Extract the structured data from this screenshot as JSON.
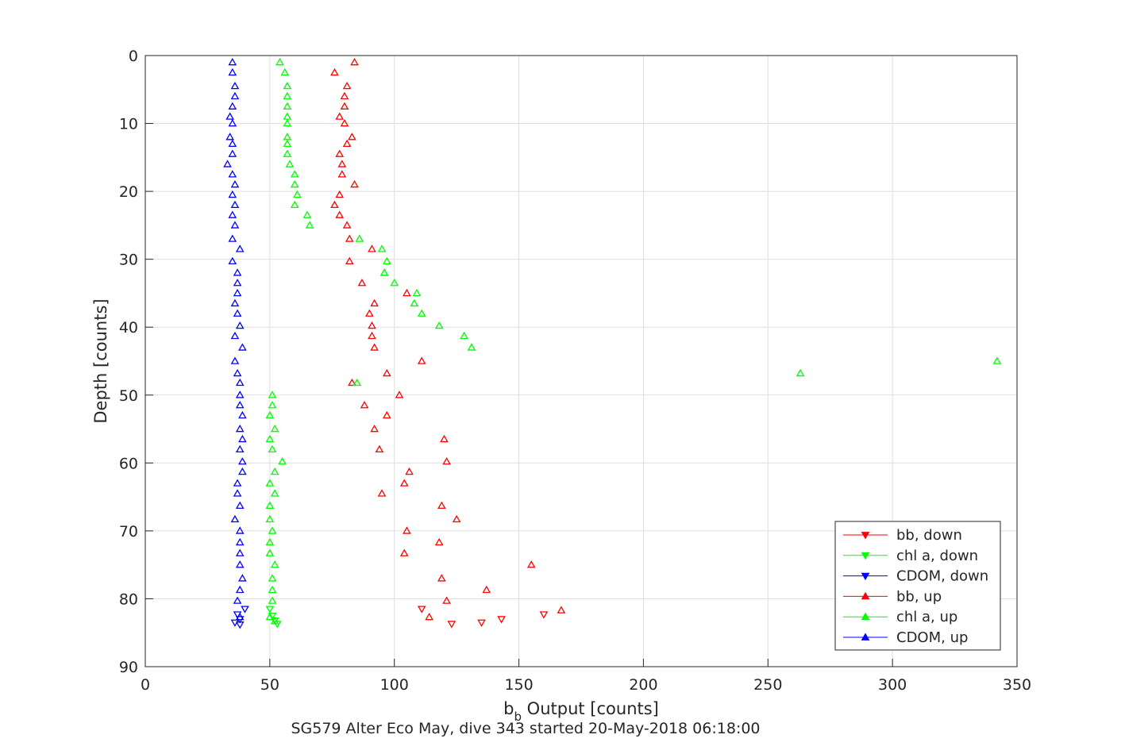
{
  "chart_data": {
    "type": "scatter",
    "xlabel_main": "b",
    "xlabel_sub": "b",
    "xlabel_rest": " Output [counts]",
    "ylabel": "Depth [counts]",
    "caption": "SG579 Alter Eco May, dive 343 started 20-May-2018 06:18:00",
    "xlim": [
      0,
      350
    ],
    "ylim": [
      0,
      90
    ],
    "y_reversed": true,
    "grid": true,
    "legend_position": "bottom-right",
    "x_ticks": [
      "0",
      "50",
      "100",
      "150",
      "200",
      "250",
      "300",
      "350"
    ],
    "y_ticks": [
      "0",
      "10",
      "20",
      "30",
      "40",
      "50",
      "60",
      "70",
      "80",
      "90"
    ],
    "series": [
      {
        "name": "bb, down",
        "color": "#ff0000",
        "marker": "triangle-down",
        "points": [
          [
            111,
            81.5
          ],
          [
            123,
            83.7
          ],
          [
            135,
            83.5
          ],
          [
            143,
            83
          ],
          [
            160,
            82.3
          ]
        ]
      },
      {
        "name": "chl a, down",
        "color": "#00ff00",
        "marker": "triangle-down",
        "points": [
          [
            50,
            81.5
          ],
          [
            51,
            82.5
          ],
          [
            52,
            83.2
          ],
          [
            53,
            83.7
          ]
        ]
      },
      {
        "name": "CDOM, down",
        "color": "#0000ff",
        "marker": "triangle-down",
        "points": [
          [
            40,
            81.5
          ],
          [
            37,
            82.3
          ],
          [
            38,
            83
          ],
          [
            36,
            83.5
          ],
          [
            38,
            83.8
          ]
        ]
      },
      {
        "name": "bb, up",
        "color": "#ff0000",
        "marker": "triangle-up",
        "points": [
          [
            84,
            1
          ],
          [
            76,
            2.5
          ],
          [
            81,
            4.5
          ],
          [
            80,
            6
          ],
          [
            80,
            7.5
          ],
          [
            78,
            9
          ],
          [
            80,
            10
          ],
          [
            83,
            12
          ],
          [
            81,
            13
          ],
          [
            78,
            14.5
          ],
          [
            79,
            16
          ],
          [
            79,
            17.5
          ],
          [
            84,
            19
          ],
          [
            78,
            20.5
          ],
          [
            76,
            22
          ],
          [
            78,
            23.5
          ],
          [
            81,
            25
          ],
          [
            82,
            27
          ],
          [
            91,
            28.5
          ],
          [
            82,
            30.3
          ],
          [
            87,
            33.5
          ],
          [
            105,
            35
          ],
          [
            92,
            36.5
          ],
          [
            90,
            38
          ],
          [
            91,
            39.8
          ],
          [
            91,
            41.3
          ],
          [
            92,
            43
          ],
          [
            111,
            45
          ],
          [
            97,
            46.8
          ],
          [
            83,
            48.2
          ],
          [
            102,
            50
          ],
          [
            88,
            51.5
          ],
          [
            97,
            53
          ],
          [
            92,
            55
          ],
          [
            120,
            56.5
          ],
          [
            94,
            58
          ],
          [
            121,
            59.8
          ],
          [
            106,
            61.3
          ],
          [
            104,
            63
          ],
          [
            95,
            64.5
          ],
          [
            119,
            66.3
          ],
          [
            125,
            68.3
          ],
          [
            105,
            70
          ],
          [
            118,
            71.7
          ],
          [
            104,
            73.3
          ],
          [
            155,
            75
          ],
          [
            119,
            77
          ],
          [
            137,
            78.7
          ],
          [
            121,
            80.3
          ],
          [
            114,
            82.7
          ],
          [
            167,
            81.7
          ]
        ]
      },
      {
        "name": "chl a, up",
        "color": "#00ff00",
        "marker": "triangle-up",
        "points": [
          [
            54,
            1
          ],
          [
            56,
            2.5
          ],
          [
            57,
            4.5
          ],
          [
            57,
            6
          ],
          [
            57,
            7.5
          ],
          [
            57,
            9
          ],
          [
            57,
            10
          ],
          [
            57,
            12
          ],
          [
            57,
            13
          ],
          [
            57,
            14.5
          ],
          [
            58,
            16
          ],
          [
            60,
            17.5
          ],
          [
            60,
            19
          ],
          [
            61,
            20.5
          ],
          [
            60,
            22
          ],
          [
            65,
            23.5
          ],
          [
            66,
            25
          ],
          [
            86,
            27
          ],
          [
            95,
            28.5
          ],
          [
            97,
            30.3
          ],
          [
            96,
            32
          ],
          [
            96,
            32
          ],
          [
            100,
            33.5
          ],
          [
            109,
            35
          ],
          [
            108,
            36.5
          ],
          [
            111,
            38
          ],
          [
            118,
            39.8
          ],
          [
            128,
            41.3
          ],
          [
            131,
            43
          ],
          [
            342,
            45
          ],
          [
            263,
            46.8
          ],
          [
            85,
            48.2
          ],
          [
            51,
            50
          ],
          [
            51,
            51.5
          ],
          [
            50,
            53
          ],
          [
            52,
            55
          ],
          [
            50,
            56.5
          ],
          [
            51,
            58
          ],
          [
            55,
            59.8
          ],
          [
            52,
            61.3
          ],
          [
            50,
            63
          ],
          [
            52,
            64.5
          ],
          [
            50,
            66.3
          ],
          [
            50,
            68.3
          ],
          [
            51,
            70
          ],
          [
            50,
            71.7
          ],
          [
            50,
            73.3
          ],
          [
            52,
            75
          ],
          [
            51,
            77
          ],
          [
            51,
            78.7
          ],
          [
            51,
            80.3
          ],
          [
            50,
            82.7
          ],
          [
            52,
            83.3
          ]
        ]
      },
      {
        "name": "CDOM, up",
        "color": "#0000ff",
        "marker": "triangle-up",
        "points": [
          [
            35,
            1
          ],
          [
            35,
            2.5
          ],
          [
            36,
            4.5
          ],
          [
            36,
            6
          ],
          [
            35,
            7.5
          ],
          [
            34,
            9
          ],
          [
            35,
            10
          ],
          [
            34,
            12
          ],
          [
            35,
            13
          ],
          [
            35,
            14.5
          ],
          [
            33,
            16
          ],
          [
            35,
            17.5
          ],
          [
            36,
            19
          ],
          [
            35,
            20.5
          ],
          [
            36,
            22
          ],
          [
            35,
            23.5
          ],
          [
            36,
            25
          ],
          [
            35,
            27
          ],
          [
            38,
            28.5
          ],
          [
            35,
            30.3
          ],
          [
            37,
            32
          ],
          [
            37,
            33.5
          ],
          [
            37,
            35
          ],
          [
            36,
            36.5
          ],
          [
            37,
            38
          ],
          [
            38,
            39.8
          ],
          [
            36,
            41.3
          ],
          [
            39,
            43
          ],
          [
            36,
            45
          ],
          [
            37,
            46.8
          ],
          [
            38,
            48.2
          ],
          [
            38,
            50
          ],
          [
            38,
            51.5
          ],
          [
            39,
            53
          ],
          [
            38,
            55
          ],
          [
            39,
            56.5
          ],
          [
            38,
            58
          ],
          [
            39,
            59.8
          ],
          [
            39,
            61.3
          ],
          [
            37,
            63
          ],
          [
            37,
            64.5
          ],
          [
            38,
            66.3
          ],
          [
            36,
            68.3
          ],
          [
            38,
            70
          ],
          [
            38,
            71.7
          ],
          [
            38,
            73.3
          ],
          [
            38,
            75
          ],
          [
            39,
            77
          ],
          [
            38,
            78.7
          ],
          [
            37,
            80.3
          ],
          [
            38,
            82.7
          ]
        ]
      }
    ]
  }
}
